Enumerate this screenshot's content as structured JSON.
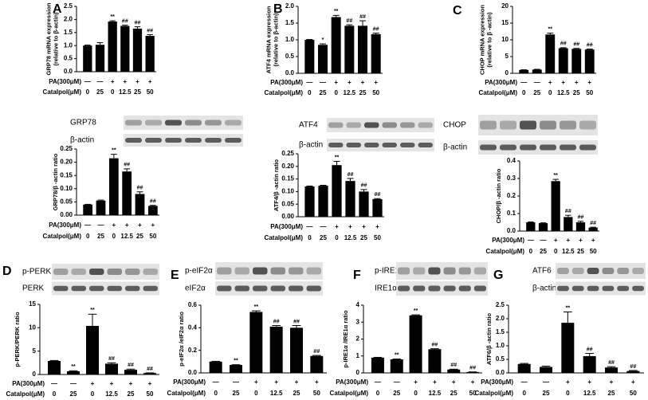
{
  "chart_data": [
    {
      "type": "bar",
      "panel": "A",
      "y_label": [
        "GRP78 mRNA expression",
        "(relative to β-actin)"
      ],
      "categories": [
        null,
        null,
        null,
        null,
        null,
        null
      ],
      "values": [
        1.0,
        1.03,
        1.92,
        1.75,
        1.65,
        1.37
      ],
      "errors": [
        0.02,
        0.08,
        0.03,
        0.03,
        0.07,
        0.05
      ],
      "annotations": [
        null,
        null,
        "**",
        "##",
        "##",
        "##"
      ],
      "ylim": [
        0,
        2.5
      ],
      "yticks": [
        {
          "value": 0,
          "label": "0.0"
        },
        0.5,
        {
          "value": 1,
          "label": "1.0"
        },
        1.5,
        {
          "value": 2,
          "label": "2.0"
        },
        2.5
      ],
      "color": "#000000",
      "treatments": [
        {
          "label": "PA(300μM)",
          "values": [
            "—",
            "—",
            "+",
            "+",
            "+",
            "+"
          ]
        },
        {
          "label": "Catalpol(μM)",
          "values": [
            "0",
            "25",
            "0",
            "12.5",
            "25",
            "50"
          ]
        }
      ]
    },
    {
      "type": "bar",
      "panel": "B",
      "y_label": [
        "ATF4 mRNA expression",
        "(relative to β-actin)"
      ],
      "categories": [
        null,
        null,
        null,
        null,
        null,
        null
      ],
      "values": [
        1.0,
        0.85,
        1.68,
        1.42,
        1.42,
        1.17
      ],
      "errors": [
        0.01,
        0.03,
        0.05,
        0.03,
        0.15,
        0.03
      ],
      "annotations": [
        null,
        "*",
        "**",
        "##",
        "##",
        "##"
      ],
      "ylim": [
        0,
        2.0
      ],
      "yticks": [
        {
          "value": 0,
          "label": "0.0"
        },
        0.5,
        {
          "value": 1,
          "label": "1.0"
        },
        1.5,
        {
          "value": 2,
          "label": "2.0"
        }
      ],
      "color": "#000000",
      "treatments": [
        {
          "label": "PA(300μM)",
          "values": [
            "—",
            "—",
            "+",
            "+",
            "+",
            "+"
          ]
        },
        {
          "label": "Catalpol(μM)",
          "values": [
            "0",
            "25",
            "0",
            "12.5",
            "25",
            "50"
          ]
        }
      ]
    },
    {
      "type": "bar",
      "panel": "C",
      "y_label": [
        "CHOP mRNA expression",
        "(relative to β -actin)"
      ],
      "categories": [
        null,
        null,
        null,
        null,
        null,
        null
      ],
      "values": [
        1.0,
        1.1,
        11.6,
        7.5,
        7.3,
        7.1
      ],
      "errors": [
        0.05,
        0.1,
        0.4,
        0.15,
        0.15,
        0.15
      ],
      "annotations": [
        null,
        null,
        "**",
        "##",
        "##",
        "##"
      ],
      "ylim": [
        0,
        20
      ],
      "yticks": [
        0,
        5,
        10,
        15,
        20
      ],
      "color": "#000000",
      "treatments": [
        {
          "label": "PA(300μM)",
          "values": [
            "—",
            "—",
            "+",
            "+",
            "+",
            "+"
          ]
        },
        {
          "label": "Catalpol(μM)",
          "values": [
            "0",
            "25",
            "0",
            "12.5",
            "25",
            "50"
          ]
        }
      ]
    },
    {
      "type": "bar",
      "blots": [
        "GRP78",
        "β-actin"
      ],
      "y_label": [
        "GRP78/β -actin ratio"
      ],
      "categories": [
        null,
        null,
        null,
        null,
        null,
        null
      ],
      "values": [
        0.04,
        0.055,
        0.215,
        0.165,
        0.08,
        0.035
      ],
      "errors": [
        0.001,
        0.002,
        0.015,
        0.01,
        0.008,
        0.002
      ],
      "annotations": [
        null,
        null,
        "**",
        "##",
        "##",
        "##"
      ],
      "ylim": [
        0,
        0.25
      ],
      "yticks": [
        {
          "value": 0,
          "label": "0.00"
        },
        {
          "value": 0.05,
          "label": "0.05"
        },
        {
          "value": 0.1,
          "label": "0.10"
        },
        {
          "value": 0.15,
          "label": "0.15"
        },
        {
          "value": 0.2,
          "label": "0.20"
        },
        {
          "value": 0.25,
          "label": "0.25"
        }
      ],
      "color": "#000000",
      "treatments": [
        {
          "label": "PA(300μM)",
          "values": [
            "—",
            "—",
            "+",
            "+",
            "+",
            "+"
          ]
        },
        {
          "label": "Catalpol(μM)",
          "values": [
            "0",
            "25",
            "0",
            "12.5",
            "25",
            "50"
          ]
        }
      ]
    },
    {
      "type": "bar",
      "blots": [
        "ATF4",
        "β-actin"
      ],
      "y_label": [
        "ATF4/β -actin ratio"
      ],
      "categories": [
        null,
        null,
        null,
        null,
        null,
        null
      ],
      "values": [
        0.12,
        0.123,
        0.205,
        0.142,
        0.1,
        0.07
      ],
      "errors": [
        0.002,
        0.002,
        0.015,
        0.01,
        0.008,
        0.002
      ],
      "annotations": [
        null,
        null,
        "**",
        "##",
        "##",
        "##"
      ],
      "ylim": [
        0,
        0.25
      ],
      "yticks": [
        {
          "value": 0,
          "label": "0.00"
        },
        {
          "value": 0.05,
          "label": "0.05"
        },
        {
          "value": 0.1,
          "label": "0.10"
        },
        {
          "value": 0.15,
          "label": "0.15"
        },
        {
          "value": 0.2,
          "label": "0.20"
        },
        {
          "value": 0.25,
          "label": "0.25"
        }
      ],
      "color": "#000000",
      "treatments": [
        {
          "label": "PA(300μM)",
          "values": [
            "—",
            "—",
            "+",
            "+",
            "+",
            "+"
          ]
        },
        {
          "label": "Catalpol(μM)",
          "values": [
            "0",
            "25",
            "0",
            "12.5",
            "25",
            "50"
          ]
        }
      ]
    },
    {
      "type": "bar",
      "blots": [
        "CHOP",
        "β-actin"
      ],
      "y_label": [
        "CHOP/β -actin ratio"
      ],
      "categories": [
        null,
        null,
        null,
        null,
        null,
        null
      ],
      "values": [
        0.05,
        0.045,
        0.285,
        0.08,
        0.05,
        0.02
      ],
      "errors": [
        0.002,
        0.002,
        0.01,
        0.01,
        0.006,
        0.002
      ],
      "annotations": [
        null,
        null,
        "**",
        "##",
        "##",
        "##"
      ],
      "ylim": [
        0,
        0.4
      ],
      "yticks": [
        {
          "value": 0,
          "label": "0.0"
        },
        0.1,
        0.2,
        0.3,
        0.4
      ],
      "color": "#000000",
      "treatments": [
        {
          "label": "PA(300μM)",
          "values": [
            "—",
            "—",
            "+",
            "+",
            "+",
            "+"
          ]
        },
        {
          "label": "Catalpol(μM)",
          "values": [
            "0",
            "25",
            "0",
            "12.5",
            "25",
            "50"
          ]
        }
      ]
    },
    {
      "type": "bar",
      "panel": "D",
      "blots": [
        "p-PERK",
        "PERK"
      ],
      "y_label": [
        "p-PERK/PERK ratio"
      ],
      "categories": [
        null,
        null,
        null,
        null,
        null,
        null
      ],
      "values": [
        2.9,
        0.7,
        10.4,
        2.3,
        1.0,
        0.3
      ],
      "errors": [
        0.1,
        0.1,
        2.5,
        0.2,
        0.15,
        0.05
      ],
      "annotations": [
        null,
        "**",
        "**",
        "##",
        "##",
        "##"
      ],
      "ylim": [
        0,
        15
      ],
      "yticks": [
        0,
        5,
        10,
        15
      ],
      "color": "#000000",
      "treatments": [
        {
          "label": "PA(300μM)",
          "values": [
            "—",
            "—",
            "+",
            "+",
            "+",
            "+"
          ]
        },
        {
          "label": "Catalpol(μM)",
          "values": [
            "0",
            "25",
            "0",
            "12.5",
            "25",
            "50"
          ]
        }
      ]
    },
    {
      "type": "bar",
      "panel": "E",
      "blots": [
        "p-eIF2α",
        "eIF2α"
      ],
      "y_label": [
        "p-eIF2α /eIF2α ratio"
      ],
      "categories": [
        null,
        null,
        null,
        null,
        null,
        null
      ],
      "values": [
        0.1,
        0.07,
        0.54,
        0.41,
        0.4,
        0.15
      ],
      "errors": [
        0.003,
        0.003,
        0.01,
        0.01,
        0.02,
        0.005
      ],
      "annotations": [
        null,
        "**",
        "**",
        "##",
        "##",
        "##"
      ],
      "ylim": [
        0,
        0.6
      ],
      "yticks": [
        {
          "value": 0,
          "label": "0.0"
        },
        0.2,
        0.4,
        0.6
      ],
      "color": "#000000",
      "treatments": [
        {
          "label": "PA(300μM)",
          "values": [
            "—",
            "—",
            "+",
            "+",
            "+",
            "+"
          ]
        },
        {
          "label": "Catalpol(μM)",
          "values": [
            "0",
            "25",
            "0",
            "12.5",
            "25",
            "50"
          ]
        }
      ]
    },
    {
      "type": "bar",
      "panel": "F",
      "blots": [
        "p-IRE1α",
        "IRE1α"
      ],
      "y_label": [
        "p-IRE1α /IRE1α ratio"
      ],
      "categories": [
        null,
        null,
        null,
        null,
        null,
        null
      ],
      "values": [
        0.9,
        0.8,
        3.4,
        1.4,
        0.2,
        0.05
      ],
      "errors": [
        0.02,
        0.02,
        0.03,
        0.03,
        0.02,
        0.01
      ],
      "annotations": [
        null,
        "**",
        "**",
        "##",
        "##",
        "##"
      ],
      "ylim": [
        0,
        4
      ],
      "yticks": [
        0,
        1,
        2,
        3,
        4
      ],
      "color": "#000000",
      "treatments": [
        {
          "label": "PA(300μM)",
          "values": [
            "—",
            "—",
            "+",
            "+",
            "+",
            "+"
          ]
        },
        {
          "label": "Catalpol(μM)",
          "values": [
            "0",
            "25",
            "0",
            "12.5",
            "25",
            "50"
          ]
        }
      ]
    },
    {
      "type": "bar",
      "panel": "G",
      "blots": [
        "ATF6",
        "β-actin"
      ],
      "y_label": [
        "ATF6/β -actin ratio"
      ],
      "categories": [
        null,
        null,
        null,
        null,
        null,
        null
      ],
      "values": [
        0.33,
        0.22,
        1.85,
        0.62,
        0.2,
        0.07
      ],
      "errors": [
        0.02,
        0.03,
        0.4,
        0.1,
        0.03,
        0.02
      ],
      "annotations": [
        null,
        null,
        "**",
        "##",
        "##",
        "##"
      ],
      "ylim": [
        0,
        2.5
      ],
      "yticks": [
        {
          "value": 0,
          "label": "0.0"
        },
        0.5,
        {
          "value": 1,
          "label": "1.0"
        },
        1.5,
        {
          "value": 2,
          "label": "2.0"
        },
        2.5
      ],
      "color": "#000000",
      "treatments": [
        {
          "label": "PA(300μM)",
          "values": [
            "—",
            "—",
            "+",
            "+",
            "+",
            "+"
          ]
        },
        {
          "label": "Catalpol(μM)",
          "values": [
            "0",
            "25",
            "0",
            "12.5",
            "25",
            "50"
          ]
        }
      ]
    }
  ]
}
